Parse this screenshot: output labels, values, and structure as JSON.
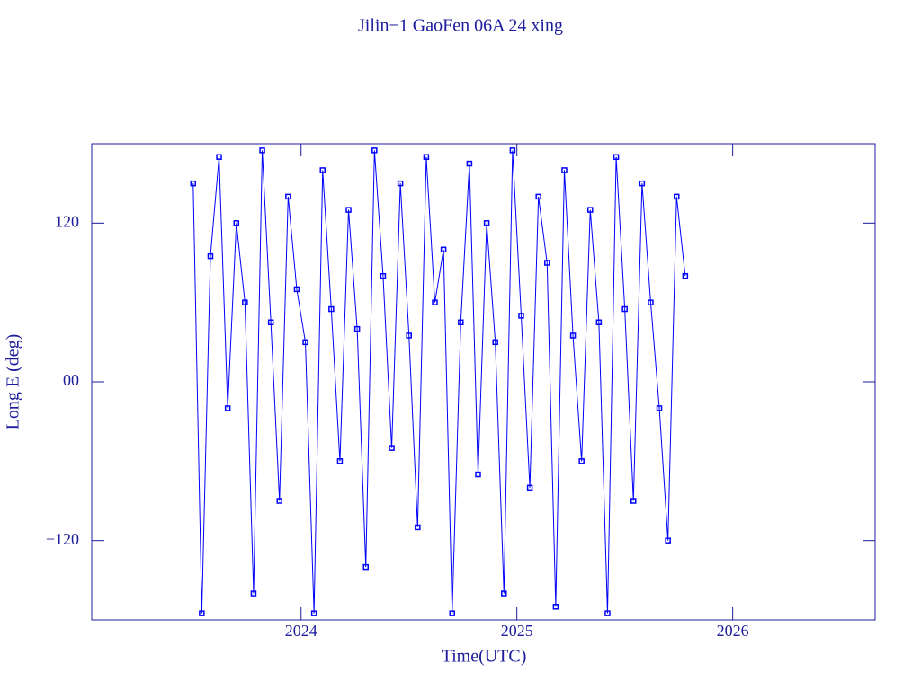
{
  "chart_data": {
    "type": "line",
    "title": "Jilin−1 GaoFen 06A 24 xing",
    "xlabel": "Time(UTC)",
    "ylabel": "Long E (deg)",
    "xlim": [
      2023.03,
      2026.66
    ],
    "ylim": [
      -180,
      180
    ],
    "xticks": [
      2024,
      2025,
      2026
    ],
    "yticks": [
      {
        "value": -120,
        "label": "−120"
      },
      {
        "value": 0,
        "label": "00"
      },
      {
        "value": 120,
        "label": "120"
      }
    ],
    "series": [
      {
        "color": "#0000ff",
        "x": [
          2023.5,
          2023.54,
          2023.58,
          2023.62,
          2023.66,
          2023.7,
          2023.74,
          2023.78,
          2023.82,
          2023.86,
          2023.9,
          2023.94,
          2023.98,
          2024.02,
          2024.06,
          2024.1,
          2024.14,
          2024.18,
          2024.22,
          2024.26,
          2024.3,
          2024.34,
          2024.38,
          2024.42,
          2024.46,
          2024.5,
          2024.54,
          2024.58,
          2024.62,
          2024.66,
          2024.7,
          2024.74,
          2024.78,
          2024.82,
          2024.86,
          2024.9,
          2024.94,
          2024.98,
          2025.02,
          2025.06,
          2025.1,
          2025.14,
          2025.18,
          2025.22,
          2025.26,
          2025.3,
          2025.34,
          2025.38,
          2025.42,
          2025.46,
          2025.5,
          2025.54,
          2025.58,
          2025.62,
          2025.66,
          2025.7,
          2025.74,
          2025.78
        ],
        "values": [
          150,
          -175,
          95,
          170,
          -20,
          120,
          60,
          -160,
          175,
          45,
          -90,
          140,
          70,
          30,
          -175,
          160,
          55,
          -60,
          130,
          40,
          -140,
          175,
          80,
          -50,
          150,
          35,
          -110,
          170,
          60,
          100,
          -175,
          45,
          165,
          -70,
          120,
          30,
          -160,
          175,
          50,
          -80,
          140,
          90,
          -170,
          160,
          35,
          -60,
          130,
          45,
          -175,
          170,
          55,
          -90,
          150,
          60,
          -20,
          -120,
          140,
          80
        ]
      }
    ]
  }
}
